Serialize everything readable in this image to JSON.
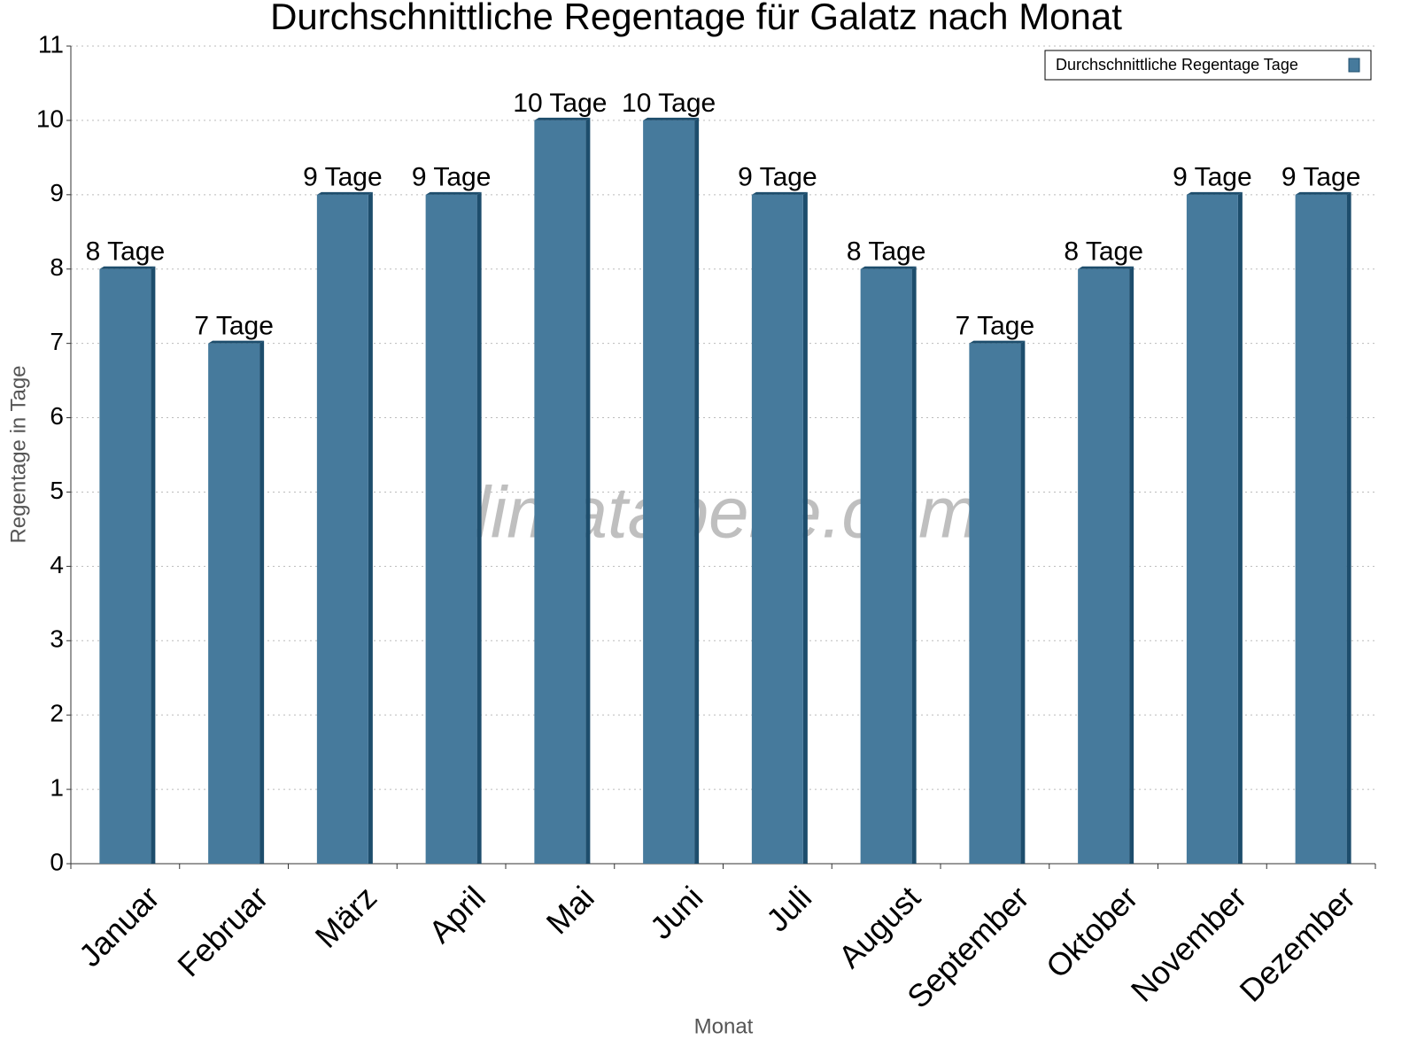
{
  "chart_data": {
    "type": "bar",
    "title": "Durchschnittliche Regentage für Galatz nach Monat",
    "x_label": "Monat",
    "y_label": "Regentage in Tage",
    "watermark": "klimatabelle.com",
    "categories": [
      "Januar",
      "Februar",
      "März",
      "April",
      "Mai",
      "Juni",
      "Juli",
      "August",
      "September",
      "Oktober",
      "November",
      "Dezember"
    ],
    "series": [
      {
        "name": "Durchschnittliche Regentage Tage",
        "color": "#467a9c",
        "values": [
          8,
          7,
          9,
          9,
          10,
          10,
          9,
          8,
          7,
          8,
          9,
          9
        ],
        "value_labels": [
          "8 Tage",
          "7 Tage",
          "9 Tage",
          "9 Tage",
          "10 Tage",
          "10 Tage",
          "9 Tage",
          "8 Tage",
          "7 Tage",
          "8 Tage",
          "9 Tage",
          "9 Tage"
        ]
      }
    ],
    "ylim": [
      0,
      11
    ],
    "yticks": [
      0,
      1,
      2,
      3,
      4,
      5,
      6,
      7,
      8,
      9,
      10,
      11
    ],
    "grid": true,
    "legend": "top-right"
  }
}
